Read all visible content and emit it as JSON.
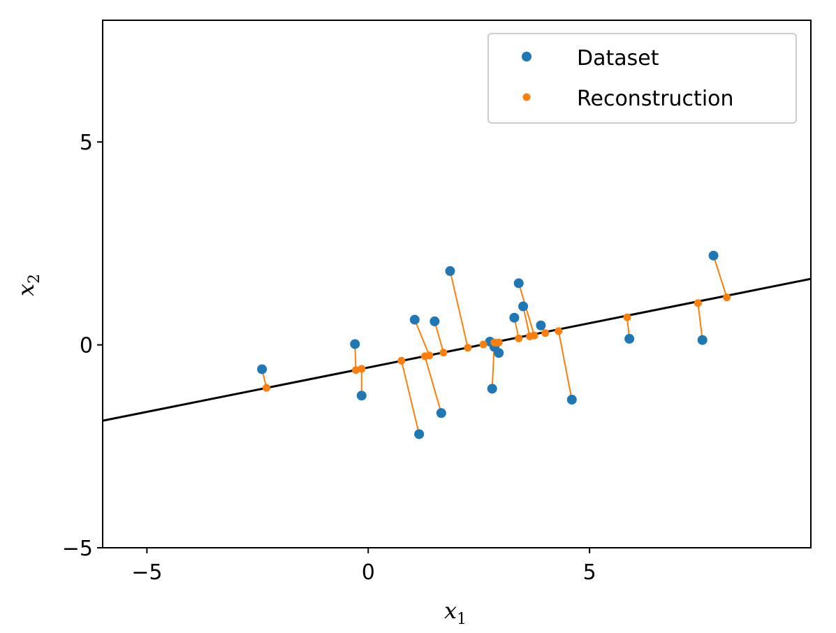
{
  "chart_data": {
    "type": "scatter",
    "xlabel": "x",
    "xlabel_sub": "1",
    "ylabel": "x",
    "ylabel_sub": "2",
    "xlim": [
      -6.0,
      10.0
    ],
    "ylim": [
      -5.0,
      8.0
    ],
    "xticks": [
      -5,
      0,
      5
    ],
    "xtick_labels": [
      "−5",
      "0",
      "5"
    ],
    "yticks": [
      -5,
      0,
      5
    ],
    "ytick_labels": [
      "−5",
      "0",
      "5"
    ],
    "grid": false,
    "legend_position": "top-right",
    "fitted_line": {
      "slope": 0.2185,
      "intercept": -0.558,
      "color": "#000000"
    },
    "series": [
      {
        "name": "Dataset",
        "color": "#1f77b4",
        "points": [
          [
            -2.4,
            -0.6
          ],
          [
            -0.3,
            0.02
          ],
          [
            -0.15,
            -1.25
          ],
          [
            1.05,
            0.62
          ],
          [
            1.15,
            -2.2
          ],
          [
            1.5,
            0.58
          ],
          [
            1.65,
            -1.68
          ],
          [
            1.85,
            1.82
          ],
          [
            2.75,
            0.08
          ],
          [
            2.8,
            -1.08
          ],
          [
            2.85,
            -0.05
          ],
          [
            2.95,
            -0.2
          ],
          [
            3.3,
            0.67
          ],
          [
            3.4,
            1.52
          ],
          [
            3.5,
            0.95
          ],
          [
            3.9,
            0.48
          ],
          [
            4.6,
            -1.35
          ],
          [
            5.9,
            0.15
          ],
          [
            7.55,
            0.12
          ],
          [
            7.8,
            2.2
          ]
        ]
      },
      {
        "name": "Reconstruction",
        "color": "#ff7f0e",
        "points": [
          [
            -2.3,
            -1.06
          ],
          [
            -0.28,
            -0.62
          ],
          [
            -0.15,
            -0.59
          ],
          [
            0.75,
            -0.39
          ],
          [
            1.28,
            -0.28
          ],
          [
            1.38,
            -0.26
          ],
          [
            1.7,
            -0.19
          ],
          [
            2.25,
            -0.07
          ],
          [
            2.6,
            0.01
          ],
          [
            2.85,
            0.06
          ],
          [
            2.9,
            0.05
          ],
          [
            2.95,
            0.06
          ],
          [
            3.4,
            0.16
          ],
          [
            3.65,
            0.21
          ],
          [
            3.75,
            0.23
          ],
          [
            4.0,
            0.29
          ],
          [
            4.3,
            0.34
          ],
          [
            5.85,
            0.68
          ],
          [
            7.45,
            1.03
          ],
          [
            8.1,
            1.17
          ]
        ]
      }
    ],
    "pairs": [
      [
        0,
        0
      ],
      [
        1,
        1
      ],
      [
        2,
        2
      ],
      [
        3,
        5
      ],
      [
        4,
        3
      ],
      [
        5,
        6
      ],
      [
        6,
        4
      ],
      [
        7,
        7
      ],
      [
        8,
        8
      ],
      [
        9,
        9
      ],
      [
        10,
        10
      ],
      [
        11,
        11
      ],
      [
        12,
        12
      ],
      [
        13,
        14
      ],
      [
        14,
        13
      ],
      [
        15,
        15
      ],
      [
        16,
        16
      ],
      [
        17,
        17
      ],
      [
        18,
        18
      ],
      [
        19,
        19
      ]
    ]
  }
}
